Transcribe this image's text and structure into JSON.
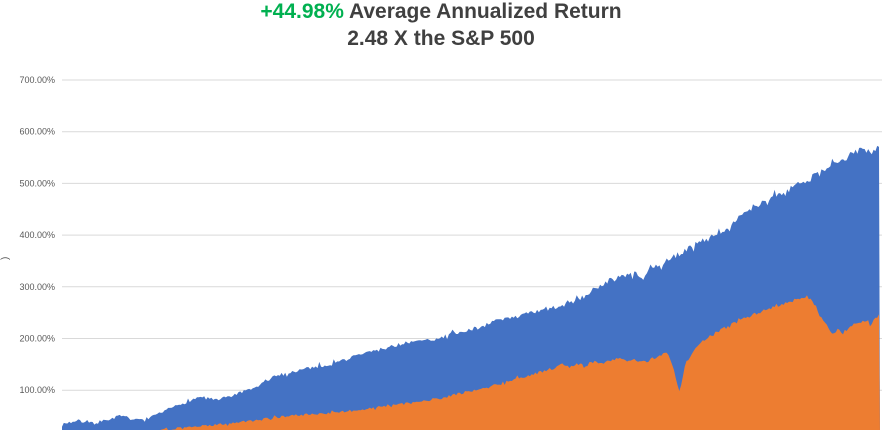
{
  "header": {
    "highlight": "+44.98%",
    "title_rest": " Average Annualized Return",
    "subtitle": "2.48 X the S&P 500"
  },
  "chart_data": {
    "type": "area",
    "title": "+44.98% Average Annualized Return",
    "subtitle": "2.48 X the S&P 500",
    "ylim": [
      0,
      700
    ],
    "grid": true,
    "legend_position": "none",
    "y_axis_label_partial": ")",
    "x_units": "normalized 0-100 (time axis cropped out of view)",
    "y_ticks": [
      {
        "label": "700.00%",
        "value": 700
      },
      {
        "label": "600.00%",
        "value": 600
      },
      {
        "label": "500.00%",
        "value": 500
      },
      {
        "label": "400.00%",
        "value": 400
      },
      {
        "label": "300.00%",
        "value": 300
      },
      {
        "label": "200.00%",
        "value": 200
      },
      {
        "label": "100.00%",
        "value": 100
      }
    ],
    "series": [
      {
        "name": "series-blue",
        "color": "#4472C4",
        "noise": 7,
        "seed": 7,
        "points": [
          [
            0,
            35
          ],
          [
            1,
            38
          ],
          [
            2,
            41
          ],
          [
            3,
            37
          ],
          [
            4,
            36
          ],
          [
            5,
            40
          ],
          [
            6,
            45
          ],
          [
            7,
            50
          ],
          [
            8,
            47
          ],
          [
            9,
            42
          ],
          [
            10,
            45
          ],
          [
            11,
            48
          ],
          [
            12,
            55
          ],
          [
            13,
            63
          ],
          [
            14,
            70
          ],
          [
            15,
            76
          ],
          [
            16,
            82
          ],
          [
            17,
            88
          ],
          [
            18,
            84
          ],
          [
            19,
            80
          ],
          [
            20,
            86
          ],
          [
            21,
            90
          ],
          [
            22,
            96
          ],
          [
            23,
            100
          ],
          [
            24,
            108
          ],
          [
            25,
            120
          ],
          [
            26,
            126
          ],
          [
            27,
            131
          ],
          [
            28,
            135
          ],
          [
            29,
            139
          ],
          [
            30,
            143
          ],
          [
            31,
            145
          ],
          [
            32,
            148
          ],
          [
            33,
            151
          ],
          [
            34,
            156
          ],
          [
            35,
            161
          ],
          [
            36,
            167
          ],
          [
            37,
            172
          ],
          [
            38,
            175
          ],
          [
            39,
            179
          ],
          [
            40,
            184
          ],
          [
            41,
            187
          ],
          [
            42,
            191
          ],
          [
            43,
            193
          ],
          [
            44,
            195
          ],
          [
            45,
            197
          ],
          [
            46,
            201
          ],
          [
            47,
            205
          ],
          [
            48,
            209
          ],
          [
            49,
            213
          ],
          [
            50,
            218
          ],
          [
            51,
            222
          ],
          [
            52,
            228
          ],
          [
            53,
            233
          ],
          [
            54,
            237
          ],
          [
            55,
            241
          ],
          [
            56,
            244
          ],
          [
            57,
            248
          ],
          [
            58,
            251
          ],
          [
            59,
            255
          ],
          [
            60,
            259
          ],
          [
            61,
            263
          ],
          [
            62,
            268
          ],
          [
            63,
            274
          ],
          [
            64,
            283
          ],
          [
            65,
            295
          ],
          [
            66,
            305
          ],
          [
            67,
            313
          ],
          [
            68,
            319
          ],
          [
            69,
            322
          ],
          [
            70,
            326
          ],
          [
            71,
            316
          ],
          [
            72,
            334
          ],
          [
            73,
            342
          ],
          [
            74,
            351
          ],
          [
            75,
            360
          ],
          [
            76,
            369
          ],
          [
            77,
            378
          ],
          [
            78,
            387
          ],
          [
            79,
            394
          ],
          [
            80,
            401
          ],
          [
            81,
            412
          ],
          [
            82,
            424
          ],
          [
            83,
            436
          ],
          [
            84,
            446
          ],
          [
            85,
            456
          ],
          [
            86,
            465
          ],
          [
            87,
            473
          ],
          [
            88,
            481
          ],
          [
            89,
            489
          ],
          [
            90,
            497
          ],
          [
            91,
            506
          ],
          [
            92,
            514
          ],
          [
            93,
            522
          ],
          [
            94,
            532
          ],
          [
            95,
            542
          ],
          [
            96,
            551
          ],
          [
            97,
            560
          ],
          [
            98,
            568
          ],
          [
            99,
            562
          ],
          [
            100,
            573
          ]
        ]
      },
      {
        "name": "series-orange",
        "color": "#ED7D31",
        "noise": 5.5,
        "seed": 13,
        "points": [
          [
            0,
            8
          ],
          [
            2,
            11
          ],
          [
            4,
            14
          ],
          [
            6,
            17
          ],
          [
            8,
            15
          ],
          [
            10,
            19
          ],
          [
            12,
            23
          ],
          [
            14,
            26
          ],
          [
            16,
            29
          ],
          [
            18,
            32
          ],
          [
            20,
            35
          ],
          [
            22,
            39
          ],
          [
            24,
            43
          ],
          [
            26,
            47
          ],
          [
            28,
            51
          ],
          [
            30,
            53
          ],
          [
            32,
            55
          ],
          [
            34,
            58
          ],
          [
            36,
            61
          ],
          [
            38,
            66
          ],
          [
            40,
            71
          ],
          [
            42,
            74
          ],
          [
            44,
            78
          ],
          [
            46,
            83
          ],
          [
            48,
            91
          ],
          [
            50,
            99
          ],
          [
            52,
            107
          ],
          [
            54,
            115
          ],
          [
            56,
            124
          ],
          [
            58,
            133
          ],
          [
            60,
            142
          ],
          [
            61,
            150
          ],
          [
            62,
            145
          ],
          [
            63,
            152
          ],
          [
            64,
            147
          ],
          [
            65,
            156
          ],
          [
            66,
            150
          ],
          [
            67,
            158
          ],
          [
            68,
            163
          ],
          [
            69,
            156
          ],
          [
            70,
            160
          ],
          [
            71,
            152
          ],
          [
            72,
            160
          ],
          [
            73,
            166
          ],
          [
            74,
            172
          ],
          [
            74.8,
            140
          ],
          [
            75.5,
            95
          ],
          [
            76.2,
            150
          ],
          [
            77,
            172
          ],
          [
            78,
            192
          ],
          [
            79,
            202
          ],
          [
            80,
            212
          ],
          [
            81,
            220
          ],
          [
            82,
            228
          ],
          [
            83,
            236
          ],
          [
            84,
            243
          ],
          [
            85,
            250
          ],
          [
            86,
            256
          ],
          [
            87,
            262
          ],
          [
            88,
            267
          ],
          [
            89,
            272
          ],
          [
            90,
            277
          ],
          [
            91,
            283
          ],
          [
            91.8,
            270
          ],
          [
            92.5,
            252
          ],
          [
            93.2,
            232
          ],
          [
            94,
            210
          ],
          [
            94.8,
            216
          ],
          [
            95.5,
            212
          ],
          [
            96.3,
            222
          ],
          [
            97,
            228
          ],
          [
            98,
            236
          ],
          [
            99,
            230
          ],
          [
            100,
            246
          ]
        ]
      }
    ],
    "style": {
      "gridline": "#D9D9D9",
      "axis_label_color": "#595959",
      "background": "#FFFFFF",
      "title_color": "#404040",
      "highlight_color": "#00B050"
    }
  }
}
